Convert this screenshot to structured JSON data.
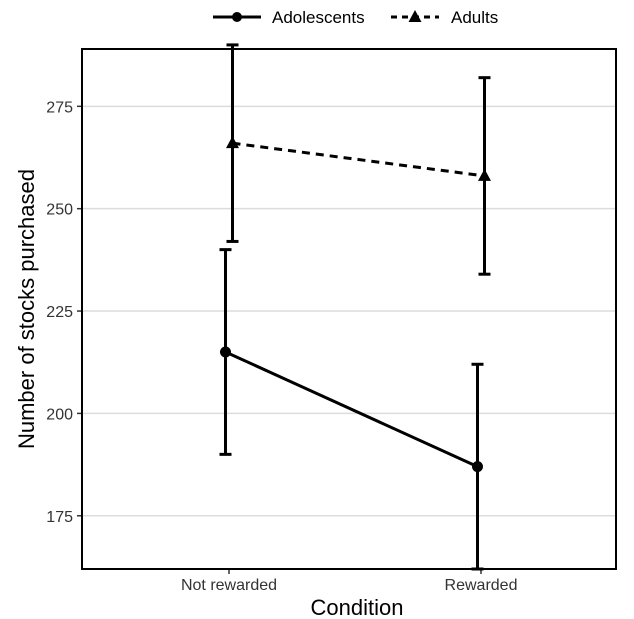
{
  "chart_data": {
    "type": "line",
    "title": "",
    "xlabel": "Condition",
    "ylabel": "Number of stocks purchased",
    "categories": [
      "Not rewarded",
      "Rewarded"
    ],
    "ylim": [
      162,
      289
    ],
    "yticks": [
      "175",
      "200",
      "225",
      "250",
      "275"
    ],
    "grid": "horizontal",
    "legend": "top",
    "series": [
      {
        "name": "Adolescents",
        "marker": "circle",
        "line": "solid",
        "values": [
          215,
          187
        ],
        "error_low": [
          190,
          162
        ],
        "error_high": [
          240,
          212
        ]
      },
      {
        "name": "Adults",
        "marker": "triangle",
        "line": "dashed",
        "values": [
          266,
          258
        ],
        "error_low": [
          242,
          234
        ],
        "error_high": [
          290,
          282
        ]
      }
    ]
  }
}
